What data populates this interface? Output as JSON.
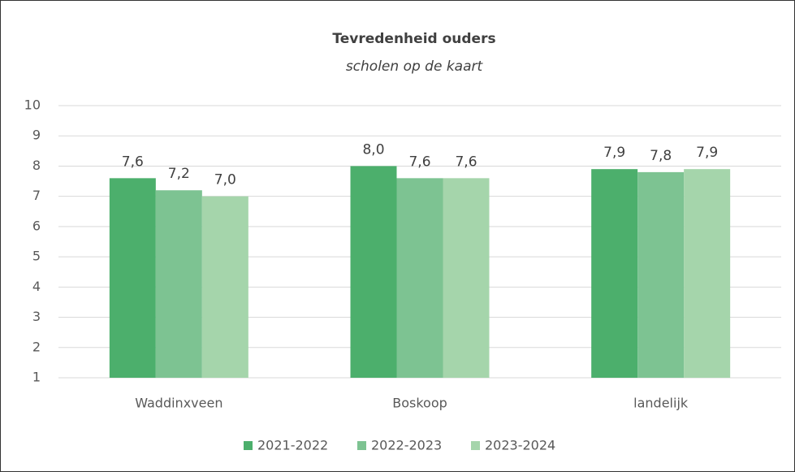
{
  "chart_data": {
    "type": "bar",
    "title": "Tevredenheid ouders",
    "subtitle": "scholen op de kaart",
    "categories": [
      "Waddinxveen",
      "Boskoop",
      "landelijk"
    ],
    "series": [
      {
        "name": "2021-2022",
        "color": "#4caf6c",
        "values": [
          7.6,
          8.0,
          7.9
        ],
        "value_labels": [
          "7,6",
          "8,0",
          "7,9"
        ]
      },
      {
        "name": "2022-2023",
        "color": "#7dc392",
        "values": [
          7.2,
          7.6,
          7.8
        ],
        "value_labels": [
          "7,2",
          "7,6",
          "7,8"
        ]
      },
      {
        "name": "2023-2024",
        "color": "#a5d5ab",
        "values": [
          7.0,
          7.6,
          7.9
        ],
        "value_labels": [
          "7,0",
          "7,6",
          "7,9"
        ]
      }
    ],
    "ylim": [
      1,
      10
    ],
    "yticks": [
      1,
      2,
      3,
      4,
      5,
      6,
      7,
      8,
      9,
      10
    ],
    "grid": true,
    "legend": "bottom"
  }
}
